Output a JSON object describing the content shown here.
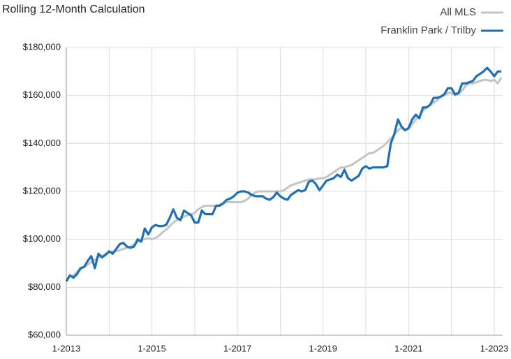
{
  "chart_data": {
    "type": "line",
    "title": "Rolling 12-Month Calculation",
    "categories": [
      "1-2013",
      null,
      null,
      null,
      null,
      null,
      null,
      null,
      null,
      null,
      null,
      null,
      null,
      null,
      null,
      null,
      null,
      null,
      null,
      null,
      null,
      null,
      null,
      null,
      "1-2015",
      null,
      null,
      null,
      null,
      null,
      null,
      null,
      null,
      null,
      null,
      null,
      null,
      null,
      null,
      null,
      null,
      null,
      null,
      null,
      null,
      null,
      null,
      null,
      "1-2017",
      null,
      null,
      null,
      null,
      null,
      null,
      null,
      null,
      null,
      null,
      null,
      null,
      null,
      null,
      null,
      null,
      null,
      null,
      null,
      null,
      null,
      null,
      null,
      "1-2019",
      null,
      null,
      null,
      null,
      null,
      null,
      null,
      null,
      null,
      null,
      null,
      null,
      null,
      null,
      null,
      null,
      null,
      null,
      null,
      null,
      null,
      null,
      null,
      "1-2021",
      null,
      null,
      null,
      null,
      null,
      null,
      null,
      null,
      null,
      null,
      null,
      null,
      null,
      null,
      null,
      null,
      null,
      null,
      null,
      null,
      null,
      null,
      null,
      "1-2023",
      null,
      null
    ],
    "series": [
      {
        "name": "All MLS",
        "color": "#c4c4c4",
        "values": [
          83500,
          84500,
          85000,
          86500,
          87500,
          88500,
          89500,
          90500,
          91500,
          92500,
          93000,
          94000,
          94500,
          95000,
          95000,
          95500,
          96000,
          96500,
          97000,
          98000,
          99000,
          100000,
          100000,
          100500,
          100000,
          100500,
          101500,
          103000,
          104000,
          105500,
          107000,
          108000,
          108500,
          109500,
          110000,
          110500,
          111000,
          112500,
          113500,
          114000,
          114000,
          114000,
          114000,
          114500,
          115000,
          115500,
          115500,
          115500,
          115500,
          115500,
          116000,
          117000,
          118500,
          119500,
          120000,
          120000,
          120000,
          120000,
          120000,
          120000,
          120000,
          120500,
          121500,
          122500,
          123000,
          123500,
          124000,
          124500,
          125000,
          125000,
          125000,
          125500,
          125500,
          126000,
          127000,
          128000,
          129000,
          130000,
          130000,
          130500,
          131000,
          132000,
          133000,
          134000,
          135000,
          136000,
          136000,
          137000,
          138000,
          139000,
          140500,
          142000,
          143500,
          145500,
          146500,
          145500,
          146000,
          148000,
          150000,
          151500,
          153500,
          155000,
          156000,
          157000,
          158000,
          159500,
          160000,
          161000,
          161000,
          160000,
          160500,
          162000,
          164000,
          165000,
          165000,
          165500,
          166000,
          166500,
          166500,
          166000,
          166500,
          165000,
          167500
        ]
      },
      {
        "name": "Franklin Park / Trilby",
        "color": "#1f6fb4",
        "values": [
          82500,
          85000,
          84000,
          85500,
          88000,
          88500,
          91000,
          93000,
          88000,
          94000,
          92500,
          93500,
          95000,
          94000,
          96000,
          98000,
          98500,
          97000,
          96500,
          97000,
          100000,
          99000,
          104500,
          102000,
          105000,
          106000,
          105500,
          105500,
          106000,
          109000,
          112500,
          109000,
          108000,
          112000,
          111000,
          110000,
          107000,
          107000,
          112000,
          110500,
          110500,
          110500,
          114000,
          114000,
          115000,
          116500,
          117000,
          118000,
          119500,
          120000,
          120000,
          119500,
          118500,
          118000,
          118000,
          118000,
          117000,
          116500,
          117500,
          119500,
          118000,
          117000,
          116500,
          118500,
          119500,
          120500,
          120000,
          120500,
          124000,
          124500,
          123000,
          120500,
          122500,
          124500,
          125000,
          125500,
          127000,
          126000,
          129000,
          125500,
          124500,
          125500,
          126500,
          129500,
          130500,
          129500,
          130000,
          130000,
          130000,
          130000,
          130500,
          140000,
          144000,
          150000,
          147000,
          145500,
          146500,
          150000,
          152000,
          150500,
          155000,
          155000,
          156000,
          159000,
          159000,
          159500,
          160500,
          163000,
          163000,
          160500,
          161000,
          165000,
          165000,
          165500,
          166000,
          168000,
          169000,
          170000,
          171500,
          170000,
          168000,
          170000,
          170000
        ]
      }
    ],
    "ylim": [
      60000,
      180000
    ],
    "yticks": [
      {
        "value": 60000,
        "label": "$60,000"
      },
      {
        "value": 80000,
        "label": "$80,000"
      },
      {
        "value": 100000,
        "label": "$100,000"
      },
      {
        "value": 120000,
        "label": "$120,000"
      },
      {
        "value": 140000,
        "label": "$140,000"
      },
      {
        "value": 160000,
        "label": "$160,000"
      },
      {
        "value": 180000,
        "label": "$180,000"
      }
    ],
    "grid": true,
    "legend": "top-right"
  }
}
